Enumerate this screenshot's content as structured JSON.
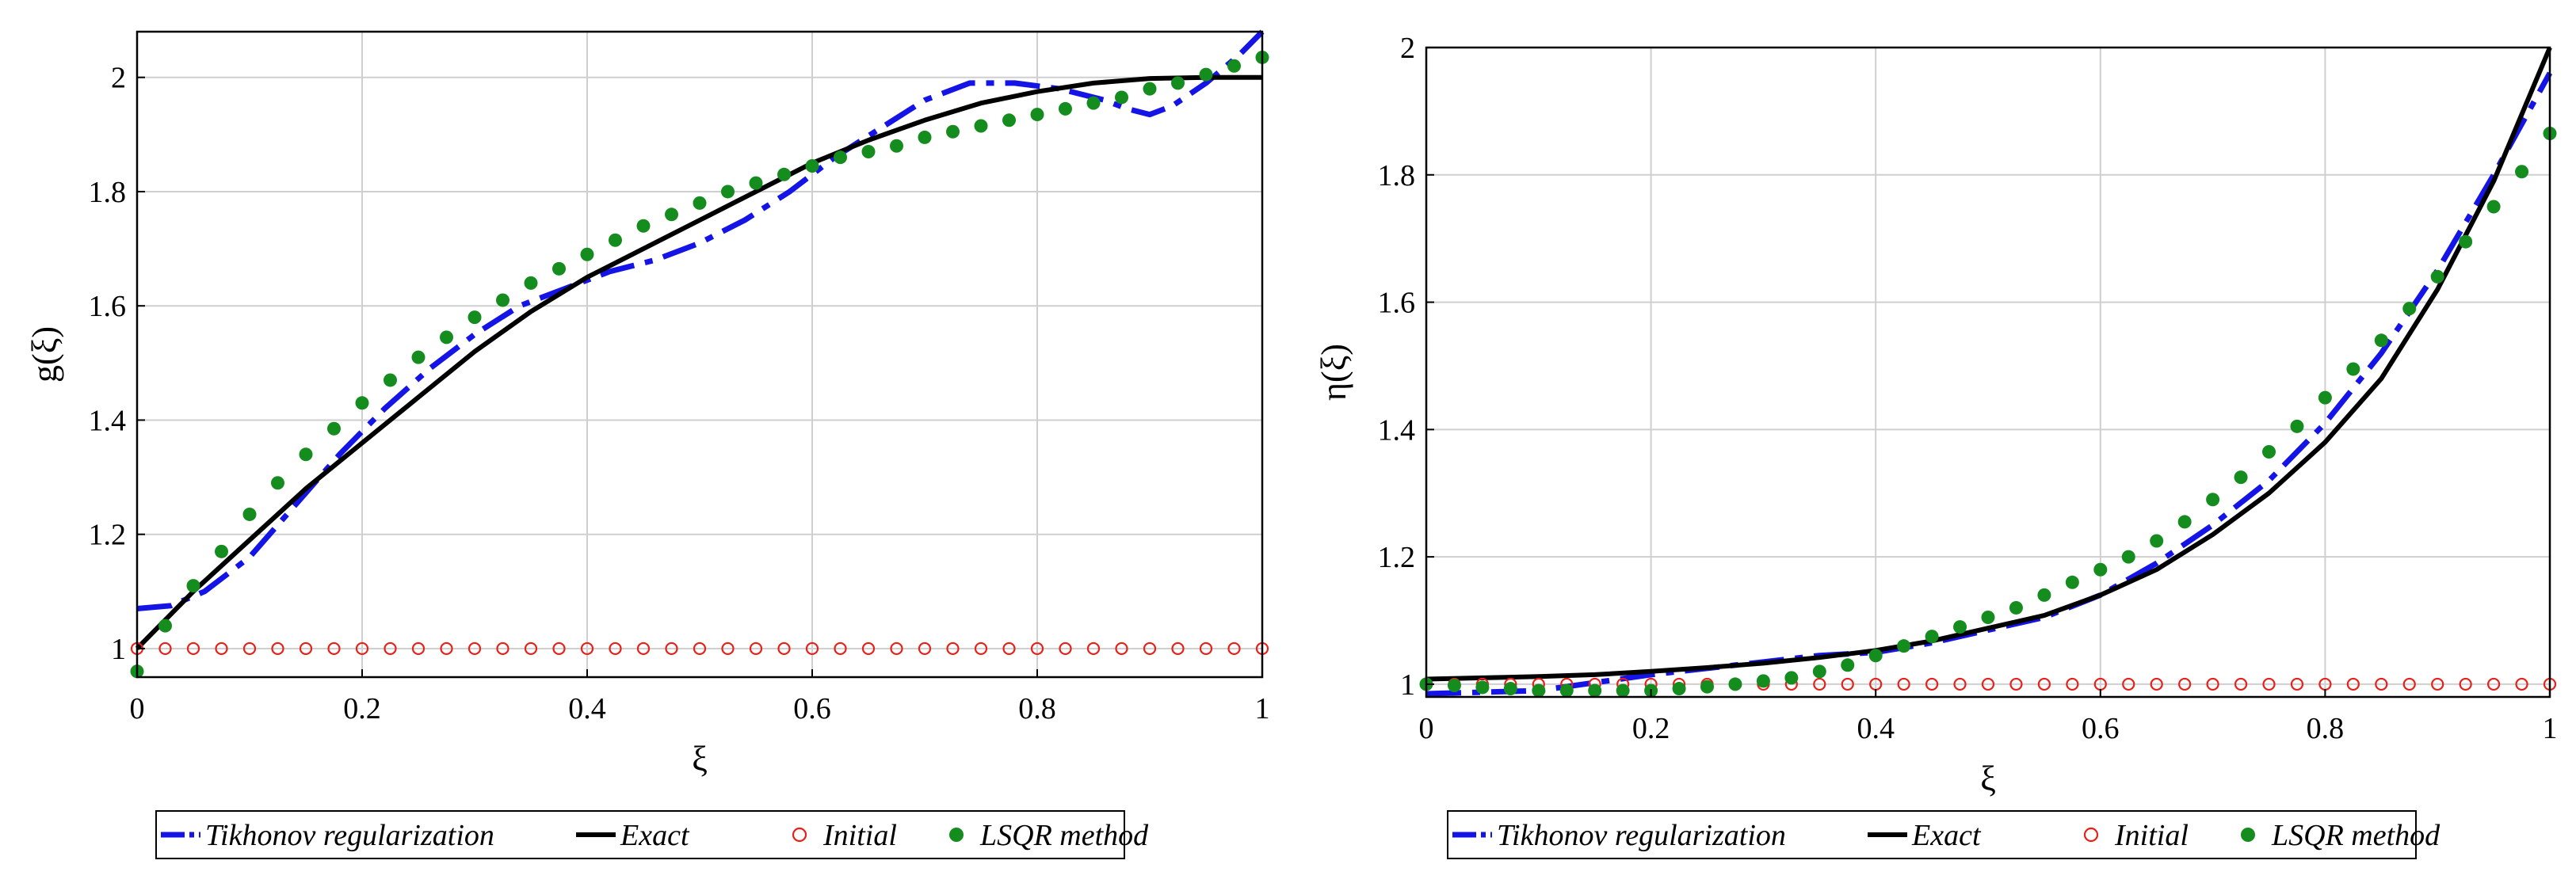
{
  "colors": {
    "tikhonov": "#1414e6",
    "exact": "#000000",
    "initial": "#e8201a",
    "lsqr": "#148c1e",
    "grid": "#cfcfcf"
  },
  "chart_data": [
    {
      "type": "line",
      "id": "left",
      "xlabel": "ξ",
      "ylabel": "g(ξ)",
      "xlim": [
        0,
        1
      ],
      "ylim": [
        0.95,
        2.08
      ],
      "xticks": [
        0,
        0.2,
        0.4,
        0.6,
        0.8,
        1
      ],
      "xtick_labels": [
        "0",
        "0.2",
        "0.4",
        "0.6",
        "0.8",
        "1"
      ],
      "yticks": [
        1,
        1.2,
        1.4,
        1.6,
        1.8,
        2
      ],
      "ytick_labels": [
        "1",
        "1.2",
        "1.4",
        "1.6",
        "1.8",
        "2"
      ],
      "grid": true,
      "legend": [
        "Tikhonov regularization",
        "Exact",
        "Initial",
        "LSQR method"
      ],
      "series": [
        {
          "name": "Tikhonov regularization",
          "style": "dash-dot",
          "x": [
            0,
            0.03,
            0.06,
            0.1,
            0.14,
            0.18,
            0.22,
            0.26,
            0.3,
            0.34,
            0.38,
            0.42,
            0.46,
            0.5,
            0.54,
            0.58,
            0.62,
            0.66,
            0.7,
            0.74,
            0.78,
            0.82,
            0.86,
            0.88,
            0.9,
            0.92,
            0.95,
            0.98,
            1.0
          ],
          "y": [
            1.07,
            1.075,
            1.1,
            1.16,
            1.25,
            1.34,
            1.42,
            1.49,
            1.55,
            1.6,
            1.63,
            1.66,
            1.68,
            1.71,
            1.75,
            1.8,
            1.86,
            1.91,
            1.96,
            1.99,
            1.99,
            1.98,
            1.96,
            1.945,
            1.935,
            1.95,
            1.99,
            2.04,
            2.08
          ]
        },
        {
          "name": "Exact",
          "style": "solid",
          "x": [
            0,
            0.05,
            0.1,
            0.15,
            0.2,
            0.25,
            0.3,
            0.35,
            0.4,
            0.45,
            0.5,
            0.55,
            0.6,
            0.65,
            0.7,
            0.75,
            0.8,
            0.85,
            0.9,
            0.95,
            1.0
          ],
          "y": [
            1.0,
            1.1,
            1.19,
            1.28,
            1.36,
            1.44,
            1.52,
            1.59,
            1.65,
            1.7,
            1.75,
            1.8,
            1.85,
            1.89,
            1.925,
            1.955,
            1.975,
            1.99,
            1.998,
            2.0,
            2.0
          ]
        },
        {
          "name": "Initial",
          "style": "open-circle",
          "x": [
            0,
            0.025,
            0.05,
            0.075,
            0.1,
            0.125,
            0.15,
            0.175,
            0.2,
            0.225,
            0.25,
            0.275,
            0.3,
            0.325,
            0.35,
            0.375,
            0.4,
            0.425,
            0.45,
            0.475,
            0.5,
            0.525,
            0.55,
            0.575,
            0.6,
            0.625,
            0.65,
            0.675,
            0.7,
            0.725,
            0.75,
            0.775,
            0.8,
            0.825,
            0.85,
            0.875,
            0.9,
            0.925,
            0.95,
            0.975,
            1.0
          ],
          "y": [
            1,
            1,
            1,
            1,
            1,
            1,
            1,
            1,
            1,
            1,
            1,
            1,
            1,
            1,
            1,
            1,
            1,
            1,
            1,
            1,
            1,
            1,
            1,
            1,
            1,
            1,
            1,
            1,
            1,
            1,
            1,
            1,
            1,
            1,
            1,
            1,
            1,
            1,
            1,
            1,
            1
          ]
        },
        {
          "name": "LSQR method",
          "style": "filled-dot",
          "x": [
            0,
            0.025,
            0.05,
            0.075,
            0.1,
            0.125,
            0.15,
            0.175,
            0.2,
            0.225,
            0.25,
            0.275,
            0.3,
            0.325,
            0.35,
            0.375,
            0.4,
            0.425,
            0.45,
            0.475,
            0.5,
            0.525,
            0.55,
            0.575,
            0.6,
            0.625,
            0.65,
            0.675,
            0.7,
            0.725,
            0.75,
            0.775,
            0.8,
            0.825,
            0.85,
            0.875,
            0.9,
            0.925,
            0.95,
            0.975,
            1.0
          ],
          "y": [
            0.96,
            1.04,
            1.11,
            1.17,
            1.235,
            1.29,
            1.34,
            1.385,
            1.43,
            1.47,
            1.51,
            1.545,
            1.58,
            1.61,
            1.64,
            1.665,
            1.69,
            1.715,
            1.74,
            1.76,
            1.78,
            1.8,
            1.815,
            1.83,
            1.845,
            1.86,
            1.87,
            1.88,
            1.895,
            1.905,
            1.915,
            1.925,
            1.935,
            1.945,
            1.955,
            1.965,
            1.98,
            1.99,
            2.005,
            2.02,
            2.035
          ]
        }
      ]
    },
    {
      "type": "line",
      "id": "right",
      "xlabel": "ξ",
      "ylabel": "η(ξ)",
      "xlim": [
        0,
        1
      ],
      "ylim": [
        0.98,
        2.0
      ],
      "xticks": [
        0,
        0.2,
        0.4,
        0.6,
        0.8,
        1
      ],
      "xtick_labels": [
        "0",
        "0.2",
        "0.4",
        "0.6",
        "0.8",
        "1"
      ],
      "yticks": [
        1,
        1.2,
        1.4,
        1.6,
        1.8,
        2
      ],
      "ytick_labels": [
        "1",
        "1.2",
        "1.4",
        "1.6",
        "1.8",
        "2"
      ],
      "grid": true,
      "legend": [
        "Tikhonov regularization",
        "Exact",
        "Initial",
        "LSQR method"
      ],
      "series": [
        {
          "name": "Tikhonov regularization",
          "style": "dash-dot",
          "x": [
            0,
            0.1,
            0.2,
            0.3,
            0.35,
            0.4,
            0.45,
            0.5,
            0.55,
            0.6,
            0.65,
            0.7,
            0.75,
            0.8,
            0.85,
            0.9,
            0.95,
            1.0
          ],
          "y": [
            0.985,
            0.99,
            1.015,
            1.035,
            1.045,
            1.05,
            1.065,
            1.085,
            1.105,
            1.14,
            1.19,
            1.25,
            1.32,
            1.41,
            1.52,
            1.65,
            1.8,
            1.96
          ]
        },
        {
          "name": "Exact",
          "style": "solid",
          "x": [
            0,
            0.05,
            0.1,
            0.15,
            0.2,
            0.25,
            0.3,
            0.35,
            0.4,
            0.45,
            0.5,
            0.55,
            0.6,
            0.65,
            0.7,
            0.75,
            0.8,
            0.85,
            0.9,
            0.95,
            1.0
          ],
          "y": [
            1.008,
            1.01,
            1.012,
            1.015,
            1.02,
            1.026,
            1.033,
            1.042,
            1.053,
            1.068,
            1.088,
            1.108,
            1.14,
            1.18,
            1.235,
            1.3,
            1.38,
            1.48,
            1.62,
            1.79,
            2.0
          ]
        },
        {
          "name": "Initial",
          "style": "open-circle",
          "x": [
            0,
            0.025,
            0.05,
            0.075,
            0.1,
            0.125,
            0.15,
            0.175,
            0.2,
            0.225,
            0.25,
            0.275,
            0.3,
            0.325,
            0.35,
            0.375,
            0.4,
            0.425,
            0.45,
            0.475,
            0.5,
            0.525,
            0.55,
            0.575,
            0.6,
            0.625,
            0.65,
            0.675,
            0.7,
            0.725,
            0.75,
            0.775,
            0.8,
            0.825,
            0.85,
            0.875,
            0.9,
            0.925,
            0.95,
            0.975,
            1.0
          ],
          "y": [
            1,
            1,
            1,
            1,
            1,
            1,
            1,
            1,
            1,
            1,
            1,
            1,
            1,
            1,
            1,
            1,
            1,
            1,
            1,
            1,
            1,
            1,
            1,
            1,
            1,
            1,
            1,
            1,
            1,
            1,
            1,
            1,
            1,
            1,
            1,
            1,
            1,
            1,
            1,
            1,
            1
          ]
        },
        {
          "name": "LSQR method",
          "style": "filled-dot",
          "x": [
            0,
            0.025,
            0.05,
            0.075,
            0.1,
            0.125,
            0.15,
            0.175,
            0.2,
            0.225,
            0.25,
            0.275,
            0.3,
            0.325,
            0.35,
            0.375,
            0.4,
            0.425,
            0.45,
            0.475,
            0.5,
            0.525,
            0.55,
            0.575,
            0.6,
            0.625,
            0.65,
            0.675,
            0.7,
            0.725,
            0.75,
            0.775,
            0.8,
            0.825,
            0.85,
            0.875,
            0.9,
            0.925,
            0.95,
            0.975,
            1.0
          ],
          "y": [
            1.0,
            0.998,
            0.995,
            0.993,
            0.99,
            0.99,
            0.99,
            0.99,
            0.99,
            0.993,
            0.996,
            1.0,
            1.005,
            1.01,
            1.02,
            1.03,
            1.045,
            1.06,
            1.075,
            1.09,
            1.105,
            1.12,
            1.14,
            1.16,
            1.18,
            1.2,
            1.225,
            1.255,
            1.29,
            1.325,
            1.365,
            1.405,
            1.45,
            1.495,
            1.54,
            1.59,
            1.64,
            1.695,
            1.75,
            1.805,
            1.865
          ]
        }
      ]
    }
  ]
}
